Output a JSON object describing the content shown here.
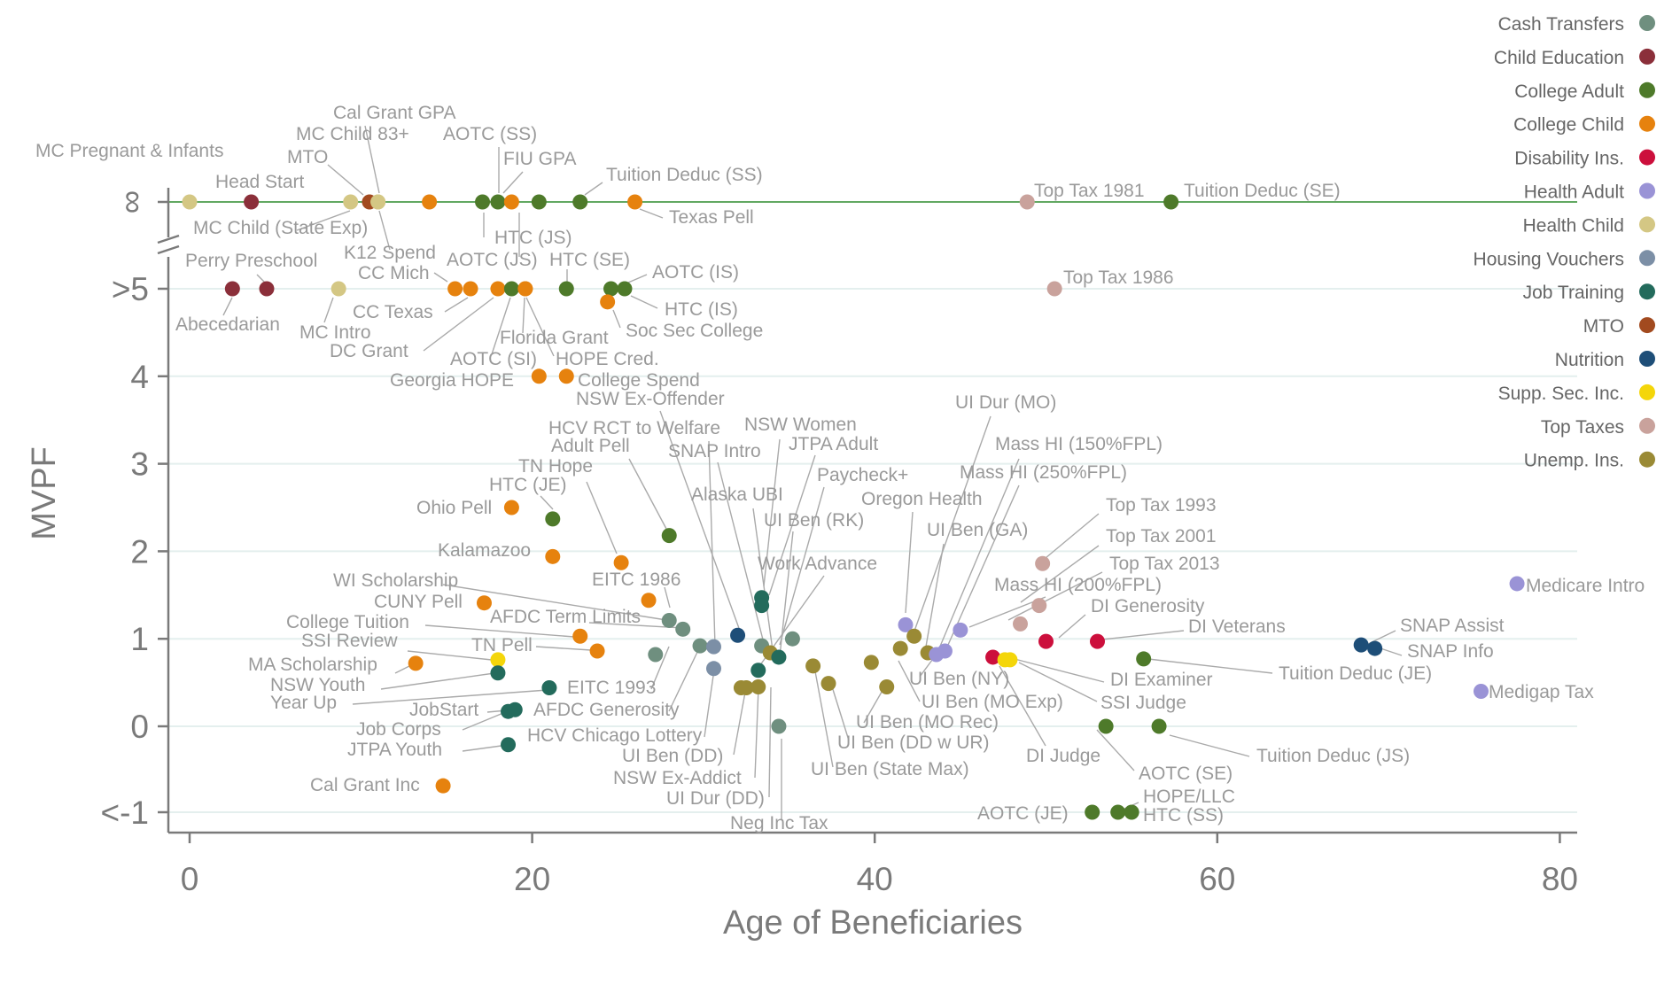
{
  "chart_data": {
    "type": "scatter",
    "xlabel": "Age of Beneficiaries",
    "ylabel": "MVPF",
    "xlim": [
      0,
      80
    ],
    "x_ticks": [
      "0",
      "20",
      "40",
      "60",
      "80"
    ],
    "y_ticks": [
      "<-1",
      "0",
      "1",
      "2",
      "3",
      "4",
      ">5",
      "∞"
    ],
    "grid": "horizontal",
    "legend_position": "top-right",
    "categories": [
      {
        "name": "Cash Transfers",
        "color": "#6f8f7f"
      },
      {
        "name": "Child Education",
        "color": "#8b2f3a"
      },
      {
        "name": "College Adult",
        "color": "#4e7a2a"
      },
      {
        "name": "College Child",
        "color": "#e6820e"
      },
      {
        "name": "Disability Ins.",
        "color": "#cc0f3c"
      },
      {
        "name": "Health Adult",
        "color": "#9a93d6"
      },
      {
        "name": "Health Child",
        "color": "#d4c784"
      },
      {
        "name": "Housing Vouchers",
        "color": "#7c8fa6"
      },
      {
        "name": "Job Training",
        "color": "#236b5c"
      },
      {
        "name": "MTO",
        "color": "#a24a1f"
      },
      {
        "name": "Nutrition",
        "color": "#1e4e78"
      },
      {
        "name": "Supp. Sec. Inc.",
        "color": "#f4d60a"
      },
      {
        "name": "Top Taxes",
        "color": "#c9a29c"
      },
      {
        "name": "Unemp. Ins.",
        "color": "#9a8a35"
      }
    ],
    "points": [
      {
        "label": "MC Pregnant & Infants",
        "category": "Health Child",
        "x": 0,
        "y": "∞"
      },
      {
        "label": "Head Start",
        "category": "Child Education",
        "x": 3.6,
        "y": "∞"
      },
      {
        "label": "MC Child (State Exp)",
        "category": "Health Child",
        "x": 9.4,
        "y": "∞"
      },
      {
        "label": "MTO",
        "category": "MTO",
        "x": 10.5,
        "y": "∞"
      },
      {
        "label": "Cal Grant GPA",
        "category": "Health Child",
        "x": 11.0,
        "y": "∞"
      },
      {
        "label": "K12 Spend",
        "category": "Health Child",
        "x": 11.0,
        "y": "∞"
      },
      {
        "label": "MC Child 83+",
        "category": "College Child",
        "x": 14.0,
        "y": "∞"
      },
      {
        "label": "HTC (JS)",
        "category": "College Adult",
        "x": 17.1,
        "y": "∞"
      },
      {
        "label": "AOTC (SS)",
        "category": "College Adult",
        "x": 18.0,
        "y": "∞"
      },
      {
        "label": "AOTC (JS)",
        "category": "College Child",
        "x": 18.8,
        "y": "∞"
      },
      {
        "label": "FIU GPA",
        "category": "College Adult",
        "x": 20.4,
        "y": "∞"
      },
      {
        "label": "Tuition Deduc (SS)",
        "category": "College Adult",
        "x": 22.8,
        "y": "∞"
      },
      {
        "label": "Texas Pell",
        "category": "College Child",
        "x": 26.0,
        "y": "∞"
      },
      {
        "label": "Top Tax 1981",
        "category": "Top Taxes",
        "x": 48.9,
        "y": "∞"
      },
      {
        "label": "Tuition Deduc (SE)",
        "category": "College Adult",
        "x": 57.3,
        "y": "∞"
      },
      {
        "label": "Abecedarian",
        "category": "Child Education",
        "x": 2.5,
        "y": ">5"
      },
      {
        "label": "Perry Preschool",
        "category": "Child Education",
        "x": 4.5,
        "y": ">5"
      },
      {
        "label": "MC Intro",
        "category": "Health Child",
        "x": 8.7,
        "y": ">5"
      },
      {
        "label": "CC Mich",
        "category": "College Child",
        "x": 15.5,
        "y": ">5"
      },
      {
        "label": "CC Texas",
        "category": "College Child",
        "x": 16.4,
        "y": ">5"
      },
      {
        "label": "DC Grant",
        "category": "College Child",
        "x": 18.0,
        "y": ">5"
      },
      {
        "label": "AOTC (SI)",
        "category": "College Adult",
        "x": 18.8,
        "y": ">5"
      },
      {
        "label": "Florida Grant",
        "category": "College Child",
        "x": 19.6,
        "y": ">5"
      },
      {
        "label": "HTC (SE)",
        "category": "College Adult",
        "x": 22.0,
        "y": ">5"
      },
      {
        "label": "AOTC (IS)",
        "category": "College Adult",
        "x": 24.6,
        "y": ">5"
      },
      {
        "label": "HTC (IS)",
        "category": "College Adult",
        "x": 25.4,
        "y": ">5"
      },
      {
        "label": "Soc Sec College",
        "category": "College Child",
        "x": 24.4,
        "y": 4.85
      },
      {
        "label": "HOPE Cred.",
        "category": "College Child",
        "x": 19.6,
        "y": 5.0
      },
      {
        "label": "Top Tax 1986",
        "category": "Top Taxes",
        "x": 50.5,
        "y": ">5"
      },
      {
        "label": "Georgia HOPE",
        "category": "College Child",
        "x": 20.4,
        "y": 4.0
      },
      {
        "label": "College Spend",
        "category": "College Child",
        "x": 22.0,
        "y": 4.0
      },
      {
        "label": "Ohio Pell",
        "category": "College Child",
        "x": 18.8,
        "y": 2.5
      },
      {
        "label": "HTC (JE)",
        "category": "College Adult",
        "x": 21.2,
        "y": 2.37
      },
      {
        "label": "TN Hope",
        "category": "College Child",
        "x": 21.2,
        "y": 1.94
      },
      {
        "label": "Kalamazoo",
        "category": "College Child",
        "x": 25.2,
        "y": 1.87
      },
      {
        "label": "Adult Pell",
        "category": "College Adult",
        "x": 28.0,
        "y": 2.18
      },
      {
        "label": "EITC 1986",
        "category": "College Child",
        "x": 26.8,
        "y": 1.44
      },
      {
        "label": "CUNY Pell",
        "category": "College Child",
        "x": 17.2,
        "y": 1.41
      },
      {
        "label": "WI Scholarship",
        "category": "Cash Transfers",
        "x": 28.0,
        "y": 1.21
      },
      {
        "label": "College Tuition",
        "category": "College Child",
        "x": 22.8,
        "y": 1.03
      },
      {
        "label": "AFDC Term Limits",
        "category": "Cash Transfers",
        "x": 28.8,
        "y": 1.11
      },
      {
        "label": "TN Pell",
        "category": "College Child",
        "x": 23.8,
        "y": 0.86
      },
      {
        "label": "SSI Review",
        "category": "Supp. Sec. Inc.",
        "x": 18.0,
        "y": 0.76
      },
      {
        "label": "MA Scholarship",
        "category": "College Child",
        "x": 13.2,
        "y": 0.72
      },
      {
        "label": "NSW Youth",
        "category": "Job Training",
        "x": 18.0,
        "y": 0.61
      },
      {
        "label": "Year Up",
        "category": "Job Training",
        "x": 21.0,
        "y": 0.44
      },
      {
        "label": "JobStart",
        "category": "Job Training",
        "x": 18.6,
        "y": 0.17
      },
      {
        "label": "Job Corps",
        "category": "Job Training",
        "x": 19.0,
        "y": 0.19
      },
      {
        "label": "JTPA Youth",
        "category": "Job Training",
        "x": 18.6,
        "y": -0.21
      },
      {
        "label": "Cal Grant Inc",
        "category": "College Child",
        "x": 14.8,
        "y": -0.68
      },
      {
        "label": "EITC 1993",
        "category": "Cash Transfers",
        "x": 27.2,
        "y": 0.82
      },
      {
        "label": "AFDC Generosity",
        "category": "Cash Transfers",
        "x": 29.8,
        "y": 0.92
      },
      {
        "label": "HCV Chicago Lottery",
        "category": "Housing Vouchers",
        "x": 30.6,
        "y": 0.66
      },
      {
        "label": "HCV RCT to Welfare",
        "category": "Housing Vouchers",
        "x": 30.6,
        "y": 0.91
      },
      {
        "label": "NSW Ex-Offender",
        "category": "Nutrition",
        "x": 32.0,
        "y": 1.04
      },
      {
        "label": "SNAP Intro",
        "category": "Cash Transfers",
        "x": 33.4,
        "y": 0.92
      },
      {
        "label": "NSW Women",
        "category": "Job Training",
        "x": 33.4,
        "y": 1.47
      },
      {
        "label": "JTPA Adult",
        "category": "Job Training",
        "x": 33.4,
        "y": 1.38
      },
      {
        "label": "Alaska UBI",
        "category": "Unemp. Ins.",
        "x": 33.9,
        "y": 0.84
      },
      {
        "label": "UI Ben (RK)",
        "category": "Job Training",
        "x": 34.4,
        "y": 0.79
      },
      {
        "label": "Paycheck+",
        "category": "Cash Transfers",
        "x": 35.2,
        "y": 1.0
      },
      {
        "label": "Work Advance",
        "category": "Job Training",
        "x": 33.2,
        "y": 0.64
      },
      {
        "label": "UI Ben (DD)",
        "category": "Unemp. Ins.",
        "x": 32.2,
        "y": 0.44
      },
      {
        "label": "NSW Ex-Addict",
        "category": "Unemp. Ins.",
        "x": 33.2,
        "y": 0.45
      },
      {
        "label": "UI Dur (DD)",
        "category": "Unemp. Ins.",
        "x": 32.5,
        "y": 0.44
      },
      {
        "label": "Neg Inc Tax",
        "category": "Cash Transfers",
        "x": 34.4,
        "y": 0.0
      },
      {
        "label": "UI Ben (State Max)",
        "category": "Unemp. Ins.",
        "x": 36.4,
        "y": 0.69
      },
      {
        "label": "UI Ben (DD w UR)",
        "category": "Unemp. Ins.",
        "x": 37.3,
        "y": 0.49
      },
      {
        "label": "UI Ben (MO Rec)",
        "category": "Unemp. Ins.",
        "x": 39.8,
        "y": 0.73
      },
      {
        "label": "Oregon Health",
        "category": "Health Adult",
        "x": 41.8,
        "y": 1.16
      },
      {
        "label": "UI Dur (MO)",
        "category": "Unemp. Ins.",
        "x": 42.3,
        "y": 1.03
      },
      {
        "label": "UI Ben (GA)",
        "category": "Unemp. Ins.",
        "x": 41.5,
        "y": 0.89
      },
      {
        "label": "UI Ben (MO Exp)",
        "category": "Unemp. Ins.",
        "x": 40.7,
        "y": 0.45
      },
      {
        "label": "UI Ben (NY)",
        "category": "Unemp. Ins.",
        "x": 43.1,
        "y": 0.84
      },
      {
        "label": "Mass HI (150%FPL)",
        "category": "Health Adult",
        "x": 43.6,
        "y": 0.82
      },
      {
        "label": "Mass HI (250%FPL)",
        "category": "Health Adult",
        "x": 44.1,
        "y": 0.86
      },
      {
        "label": "Mass HI (200%FPL)",
        "category": "Health Adult",
        "x": 45.0,
        "y": 1.1
      },
      {
        "label": "Top Tax 1993",
        "category": "Top Taxes",
        "x": 49.8,
        "y": 1.86
      },
      {
        "label": "Top Tax 2001",
        "category": "Top Taxes",
        "x": 49.6,
        "y": 1.38
      },
      {
        "label": "Top Tax 2013",
        "category": "Top Taxes",
        "x": 48.5,
        "y": 1.17
      },
      {
        "label": "DI Generosity",
        "category": "Disability Ins.",
        "x": 50.0,
        "y": 0.97
      },
      {
        "label": "DI Veterans",
        "category": "Disability Ins.",
        "x": 53.0,
        "y": 0.97
      },
      {
        "label": "DI Examiner",
        "category": "Disability Ins.",
        "x": 46.9,
        "y": 0.79
      },
      {
        "label": "SSI Judge",
        "category": "Supp. Sec. Inc.",
        "x": 47.9,
        "y": 0.76
      },
      {
        "label": "DI Judge",
        "category": "Supp. Sec. Inc.",
        "x": 47.6,
        "y": 0.76
      },
      {
        "label": "Tuition Deduc (JE)",
        "category": "College Adult",
        "x": 55.7,
        "y": 0.77
      },
      {
        "label": "AOTC (SE)",
        "category": "College Adult",
        "x": 53.5,
        "y": 0.0
      },
      {
        "label": "Tuition Deduc (JS)",
        "category": "College Adult",
        "x": 56.6,
        "y": 0.0
      },
      {
        "label": "AOTC (JE)",
        "category": "College Adult",
        "x": 52.7,
        "y": "<-1"
      },
      {
        "label": "HOPE/LLC",
        "category": "College Adult",
        "x": 54.2,
        "y": "<-1"
      },
      {
        "label": "HTC (SS)",
        "category": "College Adult",
        "x": 55.0,
        "y": "<-1"
      },
      {
        "label": "SNAP Assist",
        "category": "Nutrition",
        "x": 68.4,
        "y": 0.93
      },
      {
        "label": "SNAP Info",
        "category": "Nutrition",
        "x": 69.2,
        "y": 0.89
      },
      {
        "label": "Medicare Intro",
        "category": "Health Adult",
        "x": 77.5,
        "y": 1.63
      },
      {
        "label": "Medigap Tax",
        "category": "Health Adult",
        "x": 75.4,
        "y": 0.4
      }
    ]
  }
}
